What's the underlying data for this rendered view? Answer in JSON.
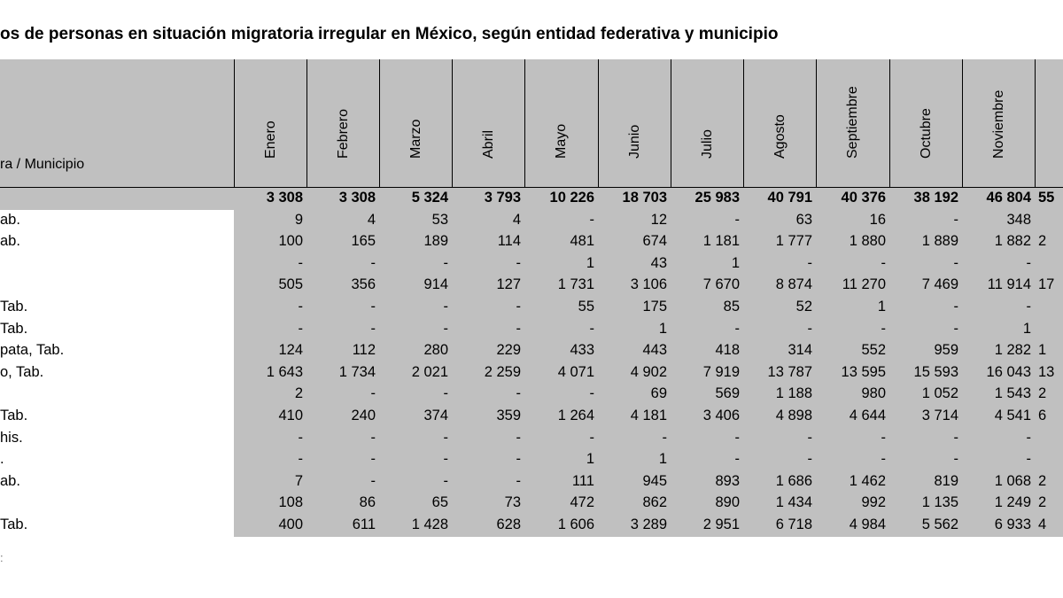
{
  "title": "os de personas en situación migratoria irregular en México, según entidad federativa y municipio",
  "header": {
    "entity_label": "ra / Municipio",
    "months": [
      "Enero",
      "Febrero",
      "Marzo",
      "Abril",
      "Mayo",
      "Junio",
      "Julio",
      "Agosto",
      "Septiembre",
      "Octubre",
      "Noviembre",
      ""
    ]
  },
  "total": {
    "name": "",
    "values": [
      "3 308",
      "3 308",
      "5 324",
      "3 793",
      "10 226",
      "18 703",
      "25 983",
      "40 791",
      "40 376",
      "38 192",
      "46 804",
      "55"
    ]
  },
  "rows": [
    {
      "name": "ab.",
      "values": [
        "9",
        "4",
        "53",
        "4",
        "-",
        "12",
        "-",
        "63",
        "16",
        "-",
        "348",
        ""
      ]
    },
    {
      "name": "ab.",
      "values": [
        "100",
        "165",
        "189",
        "114",
        "481",
        "674",
        "1 181",
        "1 777",
        "1 880",
        "1 889",
        "1 882",
        "2"
      ]
    },
    {
      "name": "",
      "values": [
        "-",
        "-",
        "-",
        "-",
        "1",
        "43",
        "1",
        "-",
        "-",
        "-",
        "-",
        ""
      ]
    },
    {
      "name": "",
      "values": [
        "505",
        "356",
        "914",
        "127",
        "1 731",
        "3 106",
        "7 670",
        "8 874",
        "11 270",
        "7 469",
        "11 914",
        "17"
      ]
    },
    {
      "name": " Tab.",
      "values": [
        "-",
        "-",
        "-",
        "-",
        "55",
        "175",
        "85",
        "52",
        "1",
        "-",
        "-",
        ""
      ]
    },
    {
      "name": " Tab.",
      "values": [
        "-",
        "-",
        "-",
        "-",
        "-",
        "1",
        "-",
        "-",
        "-",
        "-",
        "1",
        ""
      ]
    },
    {
      "name": "pata, Tab.",
      "values": [
        "124",
        "112",
        "280",
        "229",
        "433",
        "443",
        "418",
        "314",
        "552",
        "959",
        "1 282",
        "1"
      ]
    },
    {
      "name": "o, Tab.",
      "values": [
        "1 643",
        "1 734",
        "2 021",
        "2 259",
        "4 071",
        "4 902",
        "7 919",
        "13 787",
        "13 595",
        "15 593",
        "16 043",
        "13"
      ]
    },
    {
      "name": "",
      "values": [
        "2",
        "-",
        "-",
        "-",
        "-",
        "69",
        "569",
        "1 188",
        "980",
        "1 052",
        "1 543",
        "2"
      ]
    },
    {
      "name": " Tab.",
      "values": [
        "410",
        "240",
        "374",
        "359",
        "1 264",
        "4 181",
        "3 406",
        "4 898",
        "4 644",
        "3 714",
        "4 541",
        "6"
      ]
    },
    {
      "name": "his.",
      "values": [
        "-",
        "-",
        "-",
        "-",
        "-",
        "-",
        "-",
        "-",
        "-",
        "-",
        "-",
        ""
      ]
    },
    {
      "name": ".",
      "values": [
        "-",
        "-",
        "-",
        "-",
        "1",
        "1",
        "-",
        "-",
        "-",
        "-",
        "-",
        ""
      ]
    },
    {
      "name": "ab.",
      "values": [
        "7",
        "-",
        "-",
        "-",
        "111",
        "945",
        "893",
        "1 686",
        "1 462",
        "819",
        "1 068",
        "2"
      ]
    },
    {
      "name": "",
      "values": [
        "108",
        "86",
        "65",
        "73",
        "472",
        "862",
        "890",
        "1 434",
        "992",
        "1 135",
        "1 249",
        "2"
      ]
    },
    {
      "name": "Tab.",
      "values": [
        "400",
        "611",
        "1 428",
        "628",
        "1 606",
        "3 289",
        "2 951",
        "6 718",
        "4 984",
        "5 562",
        "6 933",
        "4"
      ]
    }
  ],
  "footnote": ":"
}
